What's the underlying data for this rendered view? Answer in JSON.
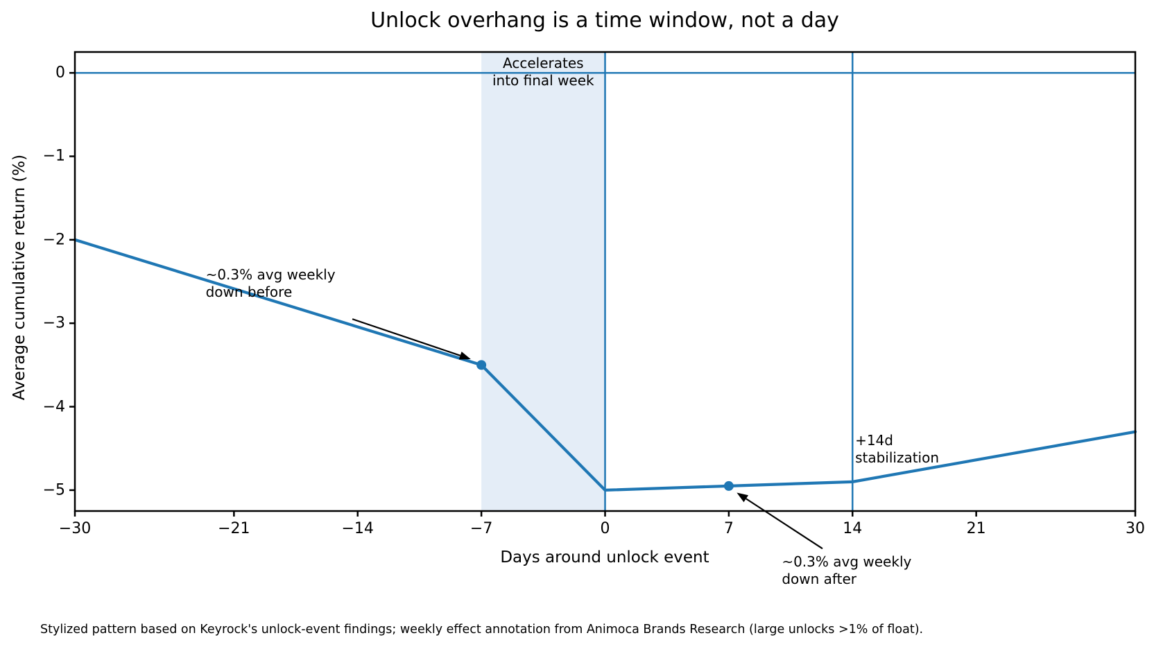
{
  "figure": {
    "footer": "Stylized pattern based on Keyrock's unlock-event findings; weekly effect annotation from Animoca Brands Research (large unlocks >1% of float)."
  },
  "chart_data": {
    "type": "line",
    "title": "Unlock overhang is a time window, not a day",
    "xlabel": "Days around unlock event",
    "ylabel": "Average cumulative return (%)",
    "xlim": [
      -30,
      30
    ],
    "ylim": [
      -5.25,
      0.25
    ],
    "grid": false,
    "legend": false,
    "line_color": "#1f77b4",
    "line_width": 4.2,
    "x_ticks": [
      {
        "value": -30,
        "label": "−30"
      },
      {
        "value": -21,
        "label": "−21"
      },
      {
        "value": -14,
        "label": "−14"
      },
      {
        "value": -7,
        "label": "−7"
      },
      {
        "value": 0,
        "label": "0"
      },
      {
        "value": 7,
        "label": "7"
      },
      {
        "value": 14,
        "label": "14"
      },
      {
        "value": 21,
        "label": "21"
      },
      {
        "value": 30,
        "label": "30"
      }
    ],
    "y_ticks": [
      {
        "value": 0,
        "label": "0"
      },
      {
        "value": -1,
        "label": "−1"
      },
      {
        "value": -2,
        "label": "−2"
      },
      {
        "value": -3,
        "label": "−3"
      },
      {
        "value": -4,
        "label": "−4"
      },
      {
        "value": -5,
        "label": "−5"
      }
    ],
    "series": [
      {
        "name": "average cumulative return",
        "x": [
          -30,
          -7,
          0,
          7,
          14,
          30
        ],
        "y": [
          -2.0,
          -3.5,
          -5.0,
          -4.95,
          -4.9,
          -4.3
        ]
      }
    ],
    "markers": [
      {
        "x": -7,
        "y": -3.5
      },
      {
        "x": 7,
        "y": -4.95
      }
    ],
    "shaded_region": {
      "x0": -7,
      "x1": 0,
      "color": "#e4edf7",
      "label_lines": [
        "Accelerates",
        "into final week"
      ],
      "label_x": -3.5,
      "label_y": 0.22
    },
    "reference_lines": {
      "hline_y": 0,
      "vlines_x": [
        0,
        14
      ],
      "color": "#1f77b4",
      "width": 2.5
    },
    "annotations": [
      {
        "id": "weekly-down-before",
        "lines": [
          "~0.3% avg weekly",
          "down before"
        ],
        "x": -22.6,
        "y": -2.32,
        "align": "left",
        "arrow": {
          "from": [
            -14.3,
            -2.95
          ],
          "to": [
            -7.6,
            -3.43
          ]
        }
      },
      {
        "id": "weekly-down-after",
        "lines": [
          "~0.3% avg weekly",
          "down after"
        ],
        "x": 10.0,
        "y": -5.76,
        "align": "left",
        "arrow": {
          "from": [
            12.3,
            -5.7
          ],
          "to": [
            7.45,
            -5.03
          ]
        }
      },
      {
        "id": "stabilization",
        "lines": [
          "+14d",
          "stabilization"
        ],
        "x": 14.15,
        "y": -4.3,
        "align": "left",
        "arrow": null
      }
    ]
  }
}
